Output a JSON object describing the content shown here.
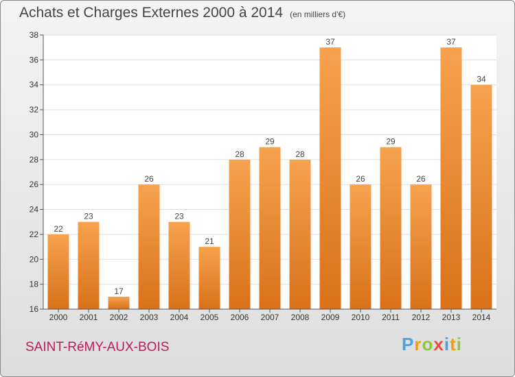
{
  "title": "Achats et Charges Externes 2000 à 2014",
  "unit_label": "(en milliers d'€)",
  "commune": "SAINT-RéMY-AUX-BOIS",
  "logo": {
    "text": "Proxiti",
    "letters": [
      {
        "char": "P",
        "color": "#4aa3df"
      },
      {
        "char": "r",
        "color": "#f39c12"
      },
      {
        "char": "o",
        "color": "#8dc63f"
      },
      {
        "char": "x",
        "color": "#e74c3c"
      },
      {
        "char": "i",
        "color": "#4aa3df"
      },
      {
        "char": "t",
        "color": "#f39c12"
      },
      {
        "char": "i",
        "color": "#8dc63f"
      }
    ]
  },
  "chart_data": {
    "type": "bar",
    "title": "Achats et Charges Externes 2000 à 2014",
    "categories": [
      "2000",
      "2001",
      "2002",
      "2003",
      "2004",
      "2005",
      "2006",
      "2007",
      "2008",
      "2009",
      "2010",
      "2011",
      "2012",
      "2013",
      "2014"
    ],
    "values": [
      22,
      23,
      17,
      26,
      23,
      21,
      28,
      29,
      28,
      37,
      26,
      29,
      26,
      37,
      34
    ],
    "xlabel": "",
    "ylabel": "",
    "ylim": [
      16,
      38
    ],
    "yticks": [
      16,
      18,
      20,
      22,
      24,
      26,
      28,
      30,
      32,
      34,
      36,
      38
    ],
    "grid": true,
    "bar_color_top": "#f6a24e",
    "bar_color_bottom": "#d9711a"
  }
}
